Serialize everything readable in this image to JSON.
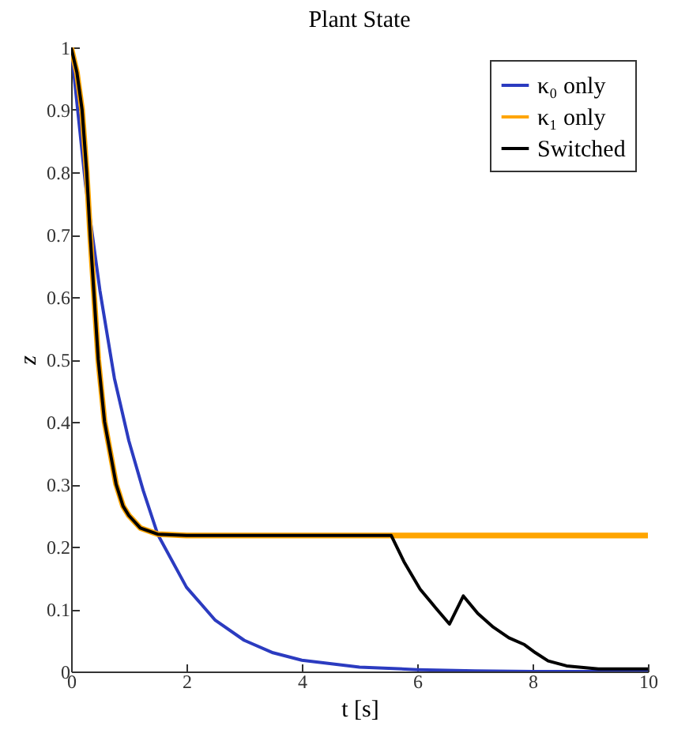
{
  "chart_data": {
    "type": "line",
    "title": "Plant State",
    "xlabel": "t [s]",
    "ylabel": "z",
    "xlim": [
      0,
      10
    ],
    "ylim": [
      0,
      1
    ],
    "xticks": [
      0,
      2,
      4,
      6,
      8,
      10
    ],
    "yticks": [
      0,
      0.1,
      0.2,
      0.3,
      0.4,
      0.5,
      0.6,
      0.7,
      0.8,
      0.9,
      1
    ],
    "legend": "top right",
    "line_style": "solid",
    "series": [
      {
        "name": "κ₀ only",
        "color": "#2b3bc0",
        "x": [
          0,
          0.25,
          0.5,
          0.75,
          1,
          1.25,
          1.5,
          2,
          2.5,
          3,
          3.5,
          4,
          5,
          6,
          7,
          8,
          10
        ],
        "values": [
          1,
          0.78,
          0.61,
          0.47,
          0.37,
          0.29,
          0.22,
          0.135,
          0.082,
          0.05,
          0.03,
          0.018,
          0.007,
          0.003,
          0.001,
          0,
          0
        ]
      },
      {
        "name": "κ₁ only",
        "color": "#ffa500",
        "x": [
          0,
          0.1,
          0.19,
          0.27,
          0.33,
          0.4,
          0.47,
          0.58,
          0.68,
          0.78,
          0.9,
          1,
          1.2,
          1.5,
          2,
          10
        ],
        "values": [
          1,
          0.96,
          0.9,
          0.8,
          0.7,
          0.6,
          0.5,
          0.4,
          0.35,
          0.3,
          0.265,
          0.25,
          0.23,
          0.22,
          0.218,
          0.218
        ]
      },
      {
        "name": "Switched",
        "color": "#000000",
        "x": [
          0,
          0.1,
          0.19,
          0.27,
          0.33,
          0.4,
          0.47,
          0.58,
          0.68,
          0.78,
          0.9,
          1,
          1.2,
          1.5,
          2,
          5.55,
          5.77,
          6.05,
          6.32,
          6.56,
          6.8,
          7.05,
          7.32,
          7.59,
          7.86,
          8.05,
          8.27,
          8.59,
          9.14,
          10
        ],
        "values": [
          1,
          0.96,
          0.9,
          0.8,
          0.7,
          0.6,
          0.5,
          0.4,
          0.35,
          0.3,
          0.265,
          0.25,
          0.23,
          0.22,
          0.218,
          0.218,
          0.176,
          0.132,
          0.102,
          0.076,
          0.121,
          0.093,
          0.071,
          0.054,
          0.043,
          0.03,
          0.017,
          0.009,
          0.004,
          0.004
        ]
      }
    ]
  }
}
